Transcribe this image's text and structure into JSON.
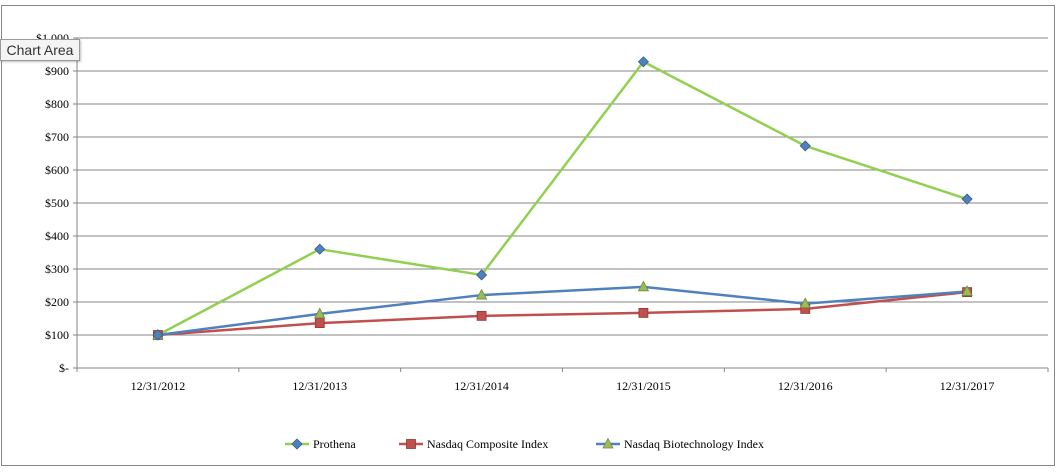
{
  "tooltip": "Chart Area",
  "chart_data": {
    "type": "line",
    "title": "",
    "xlabel": "",
    "ylabel": "",
    "categories": [
      "12/31/2012",
      "12/31/2013",
      "12/31/2014",
      "12/31/2015",
      "12/31/2016",
      "12/31/2017"
    ],
    "ylim": [
      0,
      1000
    ],
    "yticks": [
      0,
      100,
      200,
      300,
      400,
      500,
      600,
      700,
      800,
      900,
      1000
    ],
    "ytick_labels": [
      "$-",
      "$100",
      "$200",
      "$300",
      "$400",
      "$500",
      "$600",
      "$700",
      "$800",
      "$900",
      "$1,000"
    ],
    "grid": true,
    "legend_position": "bottom",
    "series": [
      {
        "name": "Prothena",
        "values": [
          100,
          360,
          282,
          928,
          673,
          512
        ],
        "color": "#92d050",
        "marker": "diamond",
        "marker_color": "#4f81bd"
      },
      {
        "name": "Nasdaq Composite Index",
        "values": [
          100,
          136,
          158,
          167,
          179,
          230
        ],
        "color": "#c0504d",
        "marker": "square",
        "marker_color": "#c0504d"
      },
      {
        "name": "Nasdaq Biotechnology Index",
        "values": [
          100,
          164,
          221,
          246,
          195,
          232
        ],
        "color": "#4f81bd",
        "marker": "triangle",
        "marker_color": "#9bbb59"
      }
    ]
  }
}
